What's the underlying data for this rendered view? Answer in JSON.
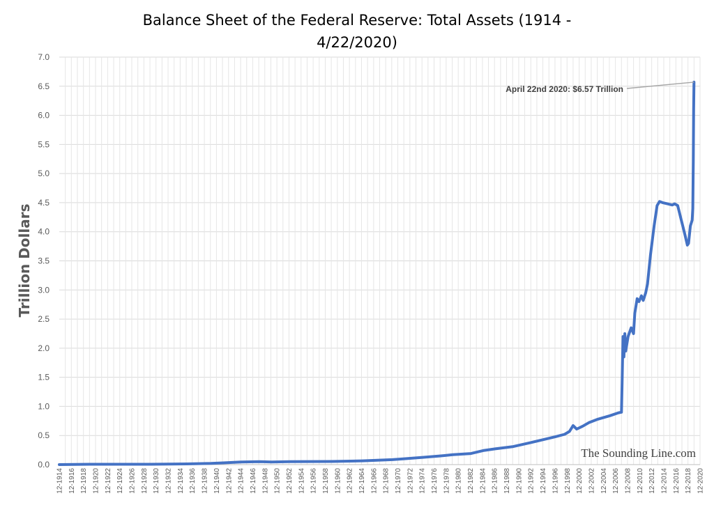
{
  "chart_data": {
    "type": "line",
    "title_line1": "Balance Sheet of the Federal Reserve: Total Assets (1914 -",
    "title_line2": "4/22/2020)",
    "ylabel": "Trillion Dollars",
    "xlabel": "",
    "ylim": [
      0,
      7
    ],
    "yticks": [
      "0.0",
      "0.5",
      "1.0",
      "1.5",
      "2.0",
      "2.5",
      "3.0",
      "3.5",
      "4.0",
      "4.5",
      "5.0",
      "5.5",
      "6.0",
      "6.5",
      "7.0"
    ],
    "xticks": [
      "12-1914",
      "12-1916",
      "12-1918",
      "12-1920",
      "12-1922",
      "12-1924",
      "12-1926",
      "12-1928",
      "12-1930",
      "12-1932",
      "12-1934",
      "12-1936",
      "12-1938",
      "12-1940",
      "12-1942",
      "12-1944",
      "12-1946",
      "12-1948",
      "12-1950",
      "12-1952",
      "12-1954",
      "12-1956",
      "12-1958",
      "12-1960",
      "12-1962",
      "12-1964",
      "12-1966",
      "12-1968",
      "12-1970",
      "12-1972",
      "12-1974",
      "12-1976",
      "12-1978",
      "12-1980",
      "12-1982",
      "12-1984",
      "12-1986",
      "12-1988",
      "12-1990",
      "12-1992",
      "12-1994",
      "12-1996",
      "12-1998",
      "12-2000",
      "12-2002",
      "12-2004",
      "12-2006",
      "12-2008",
      "12-2010",
      "12-2012",
      "12-2014",
      "12-2016",
      "12-2018",
      "12-2020"
    ],
    "grid": true,
    "series": [
      {
        "color": "#4472C4",
        "points": [
          [
            1914.9,
            0.0
          ],
          [
            1920,
            0.006
          ],
          [
            1930,
            0.006
          ],
          [
            1936,
            0.012
          ],
          [
            1940,
            0.02
          ],
          [
            1942,
            0.03
          ],
          [
            1945,
            0.045
          ],
          [
            1948,
            0.05
          ],
          [
            1950,
            0.045
          ],
          [
            1953,
            0.052
          ],
          [
            1960,
            0.054
          ],
          [
            1965,
            0.065
          ],
          [
            1970,
            0.085
          ],
          [
            1972,
            0.1
          ],
          [
            1975,
            0.125
          ],
          [
            1978,
            0.15
          ],
          [
            1980,
            0.17
          ],
          [
            1983,
            0.19
          ],
          [
            1985,
            0.24
          ],
          [
            1987,
            0.27
          ],
          [
            1990,
            0.31
          ],
          [
            1993,
            0.38
          ],
          [
            1995,
            0.43
          ],
          [
            1997,
            0.48
          ],
          [
            1998.5,
            0.52
          ],
          [
            1999.3,
            0.57
          ],
          [
            1999.9,
            0.67
          ],
          [
            2000.5,
            0.61
          ],
          [
            2001.5,
            0.66
          ],
          [
            2002.5,
            0.72
          ],
          [
            2004,
            0.78
          ],
          [
            2006,
            0.84
          ],
          [
            2007.4,
            0.89
          ],
          [
            2007.9,
            0.9
          ],
          [
            2008.0,
            1.4
          ],
          [
            2008.15,
            2.2
          ],
          [
            2008.3,
            1.85
          ],
          [
            2008.45,
            2.25
          ],
          [
            2008.6,
            1.95
          ],
          [
            2009,
            2.2
          ],
          [
            2009.5,
            2.35
          ],
          [
            2009.9,
            2.25
          ],
          [
            2010.1,
            2.6
          ],
          [
            2010.5,
            2.85
          ],
          [
            2010.8,
            2.8
          ],
          [
            2011.2,
            2.9
          ],
          [
            2011.5,
            2.82
          ],
          [
            2011.9,
            2.95
          ],
          [
            2012.2,
            3.1
          ],
          [
            2012.7,
            3.6
          ],
          [
            2013.3,
            4.1
          ],
          [
            2013.8,
            4.45
          ],
          [
            2014.2,
            4.52
          ],
          [
            2014.7,
            4.5
          ],
          [
            2015.5,
            4.48
          ],
          [
            2016.3,
            4.46
          ],
          [
            2016.7,
            4.48
          ],
          [
            2017.2,
            4.45
          ],
          [
            2017.8,
            4.2
          ],
          [
            2018.4,
            3.95
          ],
          [
            2018.8,
            3.77
          ],
          [
            2019.0,
            3.8
          ],
          [
            2019.3,
            4.1
          ],
          [
            2019.45,
            4.15
          ],
          [
            2019.6,
            4.2
          ],
          [
            2019.7,
            4.4
          ],
          [
            2019.78,
            5.2
          ],
          [
            2019.84,
            6.1
          ],
          [
            2019.9,
            6.57
          ]
        ]
      }
    ],
    "annotation": {
      "text": "April 22nd 2020: $6.57 Trillion",
      "point": [
        2019.9,
        6.57
      ]
    },
    "watermark": "The Sounding Line.com"
  }
}
